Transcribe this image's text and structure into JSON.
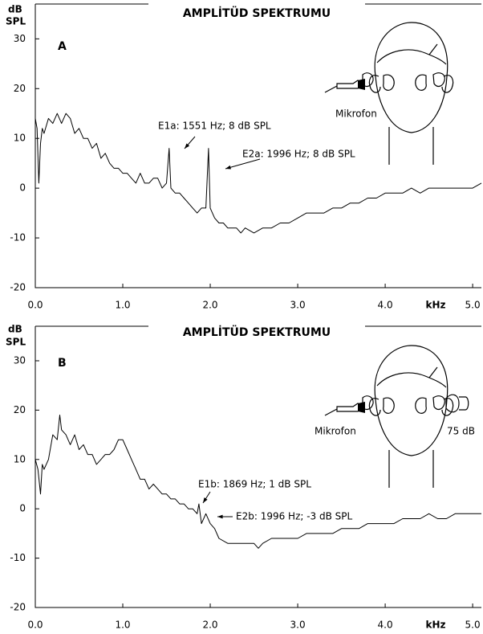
{
  "chart_data": [
    {
      "type": "line",
      "title": "AMPLİTÜD SPEKTRUMU",
      "panel_label": "A",
      "y_label": [
        "dB",
        "SPL"
      ],
      "x_label": "kHz",
      "xlim": [
        0,
        5.1
      ],
      "ylim": [
        -20,
        37
      ],
      "xticks": [
        {
          "value": 0,
          "label": "0.0"
        },
        {
          "value": 1,
          "label": "1.0"
        },
        {
          "value": 2,
          "label": "2.0"
        },
        {
          "value": 3,
          "label": "3.0"
        },
        {
          "value": 4,
          "label": "4.0"
        },
        {
          "value": 5,
          "label": "5.0"
        }
      ],
      "yticks": [
        -20,
        -10,
        0,
        10,
        20,
        30
      ],
      "series": [
        {
          "color": "#000000",
          "x": [
            0.0,
            0.02,
            0.04,
            0.06,
            0.08,
            0.1,
            0.15,
            0.2,
            0.25,
            0.3,
            0.35,
            0.4,
            0.45,
            0.5,
            0.55,
            0.6,
            0.65,
            0.7,
            0.75,
            0.8,
            0.85,
            0.9,
            0.95,
            1.0,
            1.05,
            1.1,
            1.15,
            1.2,
            1.25,
            1.3,
            1.35,
            1.4,
            1.45,
            1.5,
            1.53,
            1.55,
            1.6,
            1.65,
            1.7,
            1.75,
            1.8,
            1.85,
            1.9,
            1.95,
            1.98,
            2.0,
            2.05,
            2.1,
            2.15,
            2.2,
            2.25,
            2.3,
            2.35,
            2.4,
            2.5,
            2.6,
            2.7,
            2.8,
            2.9,
            3.0,
            3.1,
            3.2,
            3.3,
            3.4,
            3.5,
            3.6,
            3.7,
            3.8,
            3.9,
            4.0,
            4.1,
            4.2,
            4.3,
            4.4,
            4.5,
            4.6,
            4.7,
            4.8,
            4.9,
            5.0,
            5.1
          ],
          "values": [
            14,
            12,
            1,
            9,
            12,
            11,
            14,
            13,
            15,
            13,
            15,
            14,
            11,
            12,
            10,
            10,
            8,
            9,
            6,
            7,
            5,
            4,
            4,
            3,
            3,
            2,
            1,
            3,
            1,
            1,
            2,
            2,
            0,
            1,
            8,
            0,
            -1,
            -1,
            -2,
            -3,
            -4,
            -5,
            -4,
            -4,
            8,
            -4,
            -6,
            -7,
            -7,
            -8,
            -8,
            -8,
            -9,
            -8,
            -9,
            -8,
            -8,
            -7,
            -7,
            -6,
            -5,
            -5,
            -5,
            -4,
            -4,
            -3,
            -3,
            -2,
            -2,
            -1,
            -1,
            -1,
            0,
            -1,
            0,
            0,
            0,
            0,
            0,
            0,
            1
          ]
        }
      ],
      "annotations": [
        "E1a: 1551 Hz; 8 dB SPL",
        "E2a: 1996 Hz; 8 dB SPL"
      ],
      "illustration_labels": [
        "Mikrofon"
      ]
    },
    {
      "type": "line",
      "title": "AMPLİTÜD SPEKTRUMU",
      "panel_label": "B",
      "y_label": [
        "dB",
        "SPL"
      ],
      "x_label": "kHz",
      "xlim": [
        0,
        5.1
      ],
      "ylim": [
        -20,
        37
      ],
      "xticks": [
        {
          "value": 0,
          "label": "0.0"
        },
        {
          "value": 1,
          "label": "1.0"
        },
        {
          "value": 2,
          "label": "2.0"
        },
        {
          "value": 3,
          "label": "3.0"
        },
        {
          "value": 4,
          "label": "4.0"
        },
        {
          "value": 5,
          "label": "5.0"
        }
      ],
      "yticks": [
        -20,
        -10,
        0,
        10,
        20,
        30
      ],
      "series": [
        {
          "color": "#000000",
          "x": [
            0.0,
            0.03,
            0.06,
            0.08,
            0.1,
            0.15,
            0.2,
            0.25,
            0.28,
            0.3,
            0.35,
            0.4,
            0.45,
            0.5,
            0.55,
            0.6,
            0.65,
            0.7,
            0.75,
            0.8,
            0.85,
            0.9,
            0.95,
            1.0,
            1.05,
            1.1,
            1.15,
            1.2,
            1.25,
            1.3,
            1.35,
            1.4,
            1.45,
            1.5,
            1.55,
            1.6,
            1.65,
            1.7,
            1.75,
            1.8,
            1.85,
            1.87,
            1.9,
            1.95,
            2.0,
            2.05,
            2.1,
            2.2,
            2.3,
            2.4,
            2.5,
            2.55,
            2.6,
            2.7,
            2.8,
            2.9,
            3.0,
            3.1,
            3.2,
            3.3,
            3.4,
            3.5,
            3.6,
            3.7,
            3.8,
            3.9,
            4.0,
            4.1,
            4.2,
            4.3,
            4.4,
            4.5,
            4.6,
            4.7,
            4.8,
            4.9,
            5.0,
            5.1
          ],
          "values": [
            10,
            8,
            3,
            9,
            8,
            10,
            15,
            14,
            19,
            16,
            15,
            13,
            15,
            12,
            13,
            11,
            11,
            9,
            10,
            11,
            11,
            12,
            14,
            14,
            12,
            10,
            8,
            6,
            6,
            4,
            5,
            4,
            3,
            3,
            2,
            2,
            1,
            1,
            0,
            0,
            -1,
            1,
            -3,
            -1,
            -3,
            -4,
            -6,
            -7,
            -7,
            -7,
            -7,
            -8,
            -7,
            -6,
            -6,
            -6,
            -6,
            -5,
            -5,
            -5,
            -5,
            -4,
            -4,
            -4,
            -3,
            -3,
            -3,
            -3,
            -2,
            -2,
            -2,
            -1,
            -2,
            -2,
            -1,
            -1,
            -1,
            -1
          ]
        }
      ],
      "annotations": [
        "E1b: 1869 Hz; 1 dB SPL",
        "E2b: 1996 Hz; -3 dB SPL"
      ],
      "illustration_labels": [
        "Mikrofon",
        "75 dB"
      ]
    }
  ]
}
